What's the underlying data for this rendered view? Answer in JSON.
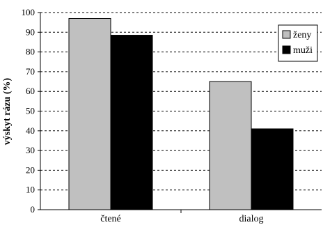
{
  "chart_data": {
    "type": "bar",
    "title": "",
    "xlabel": "",
    "ylabel": "výskyt rázu (%)",
    "ylim": [
      0,
      100
    ],
    "yticks": [
      0,
      10,
      20,
      30,
      40,
      50,
      60,
      70,
      80,
      90,
      100
    ],
    "grid": "horizontal dashed",
    "legend_position": "top-right",
    "categories": [
      "čtené",
      "dialog"
    ],
    "series": [
      {
        "name": "ženy",
        "values": [
          97,
          65
        ],
        "color": "#c0c0c0"
      },
      {
        "name": "muži",
        "values": [
          88.5,
          41
        ],
        "color": "#000000"
      }
    ]
  }
}
